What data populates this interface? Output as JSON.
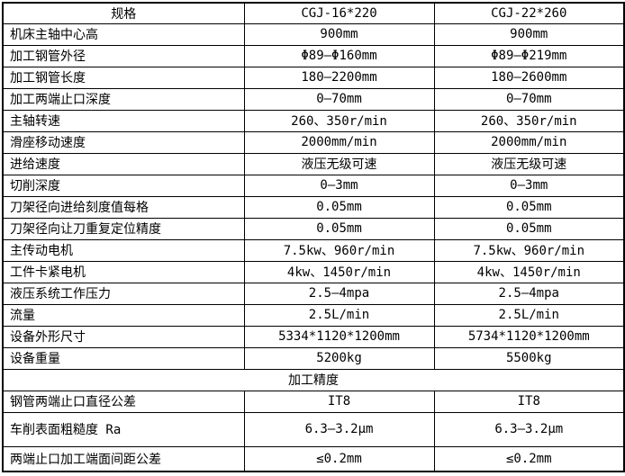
{
  "table": {
    "colors": {
      "border": "#000000",
      "text": "#000000",
      "background": "#ffffff"
    },
    "header": [
      "规格",
      "CGJ-16*220",
      "CGJ-22*260"
    ],
    "spec_rows": [
      [
        "机床主轴中心高",
        "900mm",
        "900mm"
      ],
      [
        "加工钢管外径",
        "Φ89—Φ160mm",
        "Φ89—Φ219mm"
      ],
      [
        "加工钢管长度",
        "180—2200mm",
        "180—2600mm"
      ],
      [
        "加工两端止口深度",
        "0—70mm",
        "0—70mm"
      ],
      [
        "主轴转速",
        "260、350r/min",
        "260、350r/min"
      ],
      [
        "滑座移动速度",
        "2000mm/min",
        "2000mm/min"
      ],
      [
        "进给速度",
        "液压无级可速",
        "液压无级可速"
      ],
      [
        "切削深度",
        "0—3mm",
        "0—3mm"
      ],
      [
        "刀架径向进给刻度值每格",
        "0.05mm",
        "0.05mm"
      ],
      [
        "刀架径向让刀重复定位精度",
        "0.05mm",
        "0.05mm"
      ],
      [
        "主传动电机",
        "7.5kw、960r/min",
        "7.5kw、960r/min"
      ],
      [
        "工件卡紧电机",
        "4kw、1450r/min",
        "4kw、1450r/min"
      ],
      [
        "液压系统工作压力",
        "2.5—4mpa",
        "2.5—4mpa"
      ],
      [
        "流量",
        "2.5L/min",
        "2.5L/min"
      ],
      [
        "设备外形尺寸",
        "5334*1120*1200mm",
        "5734*1120*1200mm"
      ],
      [
        "设备重量",
        "5200kg",
        "5500kg"
      ]
    ],
    "section_header": "加工精度",
    "precision_rows": [
      [
        "钢管两端止口直径公差",
        "IT8",
        "IT8"
      ],
      [
        "车削表面粗糙度 Ra",
        "6.3—3.2μm",
        "6.3—3.2μm"
      ],
      [
        "两端止口加工端面间距公差",
        "≤0.2mm",
        "≤0.2mm"
      ]
    ]
  }
}
